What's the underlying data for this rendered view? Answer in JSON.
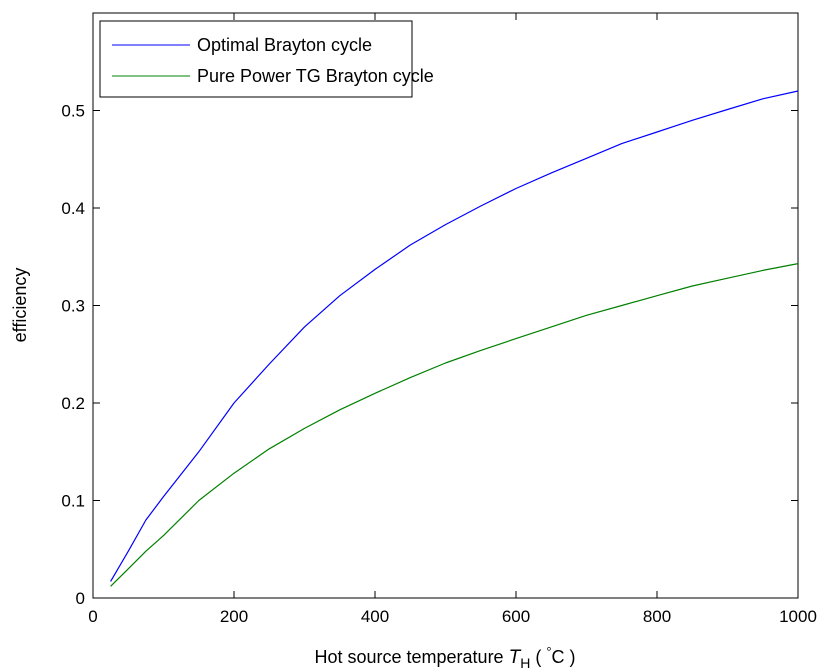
{
  "chart_data": {
    "type": "line",
    "title": "",
    "xlabel_prefix": "Hot source temperature ",
    "xlabel_var": "T",
    "xlabel_sub": "H",
    "xlabel_unit_open": " ( ",
    "xlabel_degree": "°",
    "xlabel_unit_close": "C )",
    "ylabel": "efficiency",
    "xlim": [
      0,
      1000
    ],
    "ylim": [
      0,
      0.6
    ],
    "xticks": [
      0,
      200,
      400,
      600,
      800,
      1000
    ],
    "xtick_labels": [
      "0",
      "200",
      "400",
      "600",
      "800",
      "1000"
    ],
    "yticks": [
      0,
      0.1,
      0.2,
      0.3,
      0.4,
      0.5
    ],
    "ytick_labels": [
      "0",
      "0.1",
      "0.2",
      "0.3",
      "0.4",
      "0.5"
    ],
    "grid": false,
    "legend_position": "top-left",
    "series": [
      {
        "name": "Optimal Brayton cycle",
        "color": "#0000ff",
        "x": [
          25,
          50,
          75,
          100,
          150,
          200,
          250,
          300,
          350,
          400,
          450,
          500,
          550,
          600,
          650,
          700,
          750,
          800,
          850,
          900,
          950,
          1000
        ],
        "y": [
          0.017,
          0.048,
          0.08,
          0.104,
          0.15,
          0.2,
          0.24,
          0.278,
          0.31,
          0.337,
          0.362,
          0.383,
          0.402,
          0.42,
          0.436,
          0.451,
          0.466,
          0.478,
          0.49,
          0.501,
          0.512,
          0.52
        ]
      },
      {
        "name": "Pure Power TG Brayton cycle",
        "color": "#008000",
        "x": [
          25,
          50,
          75,
          100,
          150,
          200,
          250,
          300,
          350,
          400,
          450,
          500,
          550,
          600,
          650,
          700,
          750,
          800,
          850,
          900,
          950,
          1000
        ],
        "y": [
          0.012,
          0.03,
          0.048,
          0.064,
          0.1,
          0.128,
          0.153,
          0.174,
          0.193,
          0.21,
          0.226,
          0.241,
          0.254,
          0.266,
          0.278,
          0.29,
          0.3,
          0.31,
          0.32,
          0.328,
          0.336,
          0.343
        ]
      }
    ]
  }
}
